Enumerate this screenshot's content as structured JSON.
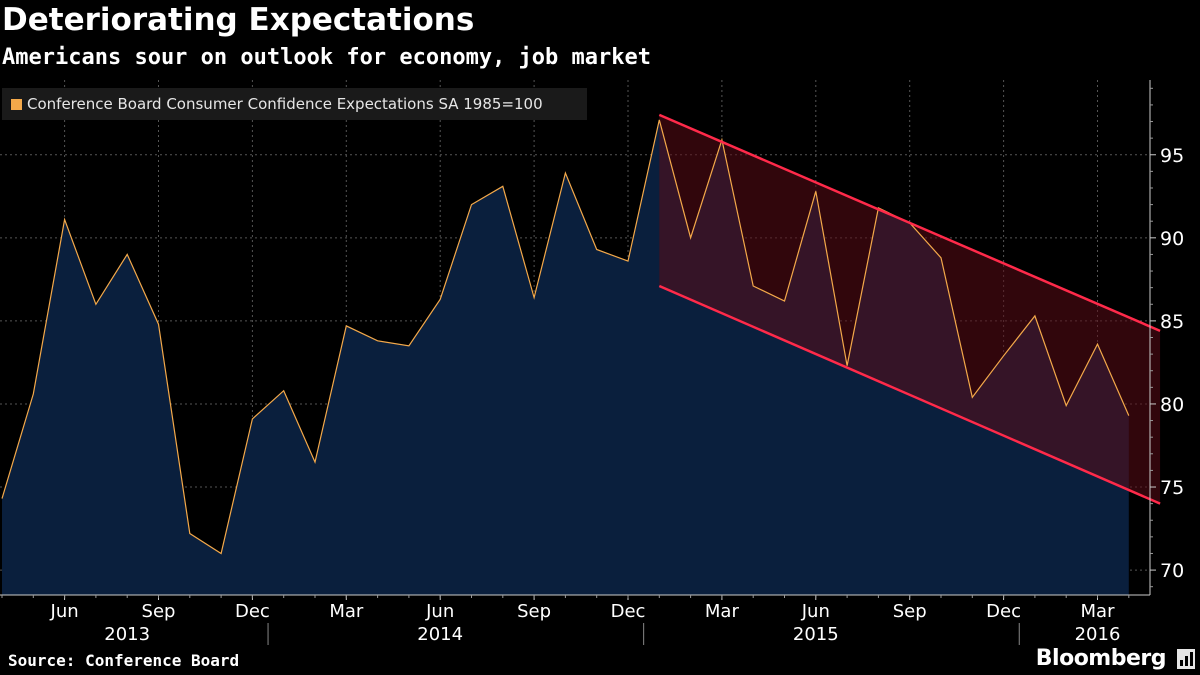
{
  "header": {
    "title": "Deteriorating Expectations",
    "subtitle": "Americans sour on outlook for economy, job market"
  },
  "legend": {
    "label": "Conference Board Consumer Confidence Expectations SA 1985=100",
    "swatch_color": "#f4a94a"
  },
  "footer": {
    "source": "Source: Conference Board",
    "brand": "Bloomberg",
    "brand_icon": "bar-chart-icon"
  },
  "chart_data": {
    "type": "area",
    "x": [
      "2013-04",
      "2013-05",
      "2013-06",
      "2013-07",
      "2013-08",
      "2013-09",
      "2013-10",
      "2013-11",
      "2013-12",
      "2014-01",
      "2014-02",
      "2014-03",
      "2014-04",
      "2014-05",
      "2014-06",
      "2014-07",
      "2014-08",
      "2014-09",
      "2014-10",
      "2014-11",
      "2014-12",
      "2015-01",
      "2015-02",
      "2015-03",
      "2015-04",
      "2015-05",
      "2015-06",
      "2015-07",
      "2015-08",
      "2015-09",
      "2015-10",
      "2015-11",
      "2015-12",
      "2016-01",
      "2016-02",
      "2016-03",
      "2016-04"
    ],
    "series": [
      {
        "name": "Conference Board Consumer Confidence Expectations SA 1985=100",
        "values": [
          74.3,
          80.6,
          91.1,
          86.0,
          89.0,
          84.8,
          72.2,
          71.0,
          79.1,
          80.8,
          76.5,
          84.7,
          83.8,
          83.5,
          86.3,
          92.0,
          93.1,
          86.4,
          93.9,
          89.3,
          88.6,
          97.1,
          90.0,
          95.9,
          87.1,
          86.2,
          92.8,
          82.3,
          91.8,
          90.9,
          88.8,
          80.4,
          82.9,
          85.3,
          79.9,
          83.6,
          79.3
        ],
        "line_color": "#f4a94a",
        "fill_color": "#0a1f3d"
      }
    ],
    "channel": {
      "upper": {
        "start": [
          "2015-01",
          97.4
        ],
        "end": [
          "2016-05",
          84.4
        ]
      },
      "lower": {
        "start": [
          "2015-01",
          87.1
        ],
        "end": [
          "2016-05",
          74.0
        ]
      },
      "line_color": "#ff2a4a",
      "fill_color": "#5a0b16"
    },
    "xaxis": {
      "month_ticks": [
        {
          "x": "2013-06",
          "label": "Jun"
        },
        {
          "x": "2013-09",
          "label": "Sep"
        },
        {
          "x": "2013-12",
          "label": "Dec"
        },
        {
          "x": "2014-03",
          "label": "Mar"
        },
        {
          "x": "2014-06",
          "label": "Jun"
        },
        {
          "x": "2014-09",
          "label": "Sep"
        },
        {
          "x": "2014-12",
          "label": "Dec"
        },
        {
          "x": "2015-03",
          "label": "Mar"
        },
        {
          "x": "2015-06",
          "label": "Jun"
        },
        {
          "x": "2015-09",
          "label": "Sep"
        },
        {
          "x": "2015-12",
          "label": "Dec"
        },
        {
          "x": "2016-03",
          "label": "Mar"
        }
      ],
      "years": [
        {
          "x": "2013-08",
          "label": "2013"
        },
        {
          "x": "2014-06",
          "label": "2014"
        },
        {
          "x": "2015-06",
          "label": "2015"
        },
        {
          "x": "2016-03",
          "label": "2016"
        }
      ]
    },
    "yaxis": {
      "ticks": [
        70,
        75,
        80,
        85,
        90,
        95
      ],
      "ylim": [
        68.5,
        99.5
      ],
      "position": "right"
    },
    "grid": true,
    "legend_position": "top-left"
  }
}
